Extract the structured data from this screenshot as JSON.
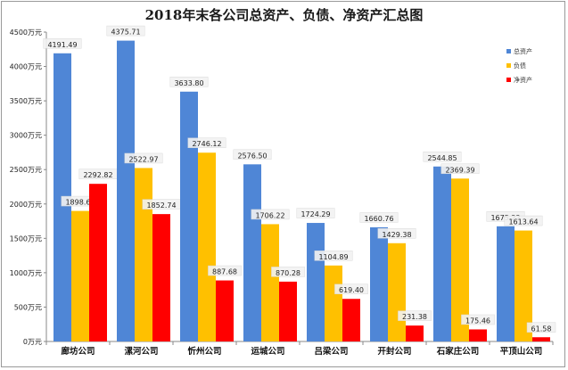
{
  "chart_data": {
    "type": "bar",
    "title": "2018年末各公司总资产、负债、净资产汇总图",
    "categories": [
      "廊坊公司",
      "漯河公司",
      "忻州公司",
      "运城公司",
      "吕梁公司",
      "开封公司",
      "石家庄公司",
      "平顶山公司"
    ],
    "series": [
      {
        "name": "总资产",
        "color": "#4f86d6",
        "values": [
          4191.49,
          4375.71,
          3633.8,
          2576.5,
          1724.29,
          1660.76,
          2544.85,
          1675.22
        ]
      },
      {
        "name": "负债",
        "color": "#ffc000",
        "values": [
          1898.67,
          2522.97,
          2746.12,
          1706.22,
          1104.89,
          1429.38,
          2369.39,
          1613.64
        ]
      },
      {
        "name": "净资产",
        "color": "#ff0000",
        "values": [
          2292.82,
          1852.74,
          887.68,
          870.28,
          619.4,
          231.38,
          175.46,
          61.58
        ]
      }
    ],
    "value_labels": [
      [
        "4191.49",
        "4375.71",
        "3633.80",
        "2576.50",
        "1724.29",
        "1660.76",
        "2544.85",
        "1675.22"
      ],
      [
        "1898.67",
        "2522.97",
        "2746.12",
        "1706.22",
        "1104.89",
        "1429.38",
        "2369.39",
        "1613.64"
      ],
      [
        "2292.82",
        "1852.74",
        "887.68",
        "870.28",
        "619.40",
        "231.38",
        "175.46",
        "61.58"
      ]
    ],
    "ylim": [
      0,
      4500
    ],
    "yticks": [
      0,
      500,
      1000,
      1500,
      2000,
      2500,
      3000,
      3500,
      4000,
      4500
    ],
    "ytick_labels": [
      "0万元",
      "500万元",
      "1000万元",
      "1500万元",
      "2000万元",
      "2500万元",
      "3000万元",
      "3500万元",
      "4000万元",
      "4500万元"
    ],
    "xlabel": "",
    "ylabel": "",
    "grid": false,
    "legend": "top-right"
  }
}
